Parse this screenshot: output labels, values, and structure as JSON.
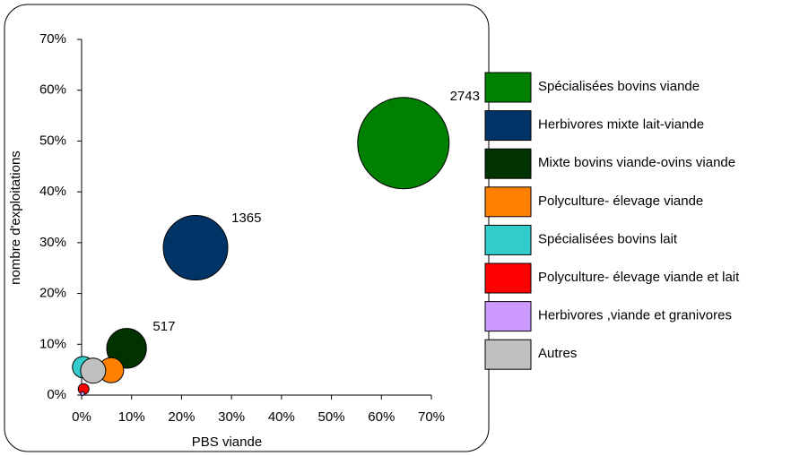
{
  "chart_data": {
    "type": "bubble",
    "xlabel": "PBS viande",
    "ylabel": "nombre d'exploitations",
    "xlim": [
      0,
      70
    ],
    "ylim": [
      0,
      70
    ],
    "xticks": [
      {
        "value": 0,
        "label": "0%"
      },
      {
        "value": 10,
        "label": "10%"
      },
      {
        "value": 20,
        "label": "20%"
      },
      {
        "value": 30,
        "label": "30%"
      },
      {
        "value": 40,
        "label": "40%"
      },
      {
        "value": 50,
        "label": "50%"
      },
      {
        "value": 60,
        "label": "60%"
      },
      {
        "value": 70,
        "label": "70%"
      }
    ],
    "yticks": [
      {
        "value": 0,
        "label": "0%"
      },
      {
        "value": 10,
        "label": "10%"
      },
      {
        "value": 20,
        "label": "20%"
      },
      {
        "value": 30,
        "label": "30%"
      },
      {
        "value": 40,
        "label": "40%"
      },
      {
        "value": 50,
        "label": "50%"
      },
      {
        "value": 60,
        "label": "60%"
      },
      {
        "value": 70,
        "label": "70%"
      }
    ],
    "legend": "right",
    "series": [
      {
        "name": "Spécialisées bovins viande",
        "color": "#008000",
        "x": 64.4,
        "y": 49.6,
        "size": 2743,
        "value_label": "2743"
      },
      {
        "name": "Herbivores mixte lait-viande",
        "color": "#003366",
        "x": 22.8,
        "y": 29,
        "size": 1365,
        "value_label": "1365"
      },
      {
        "name": "Mixte bovins viande-ovins viande",
        "color": "#003300",
        "x": 9,
        "y": 9.2,
        "size": 517,
        "value_label": "517"
      },
      {
        "name": "Polyculture- élevage viande",
        "color": "#ff8000",
        "x": 5.9,
        "y": 4.9,
        "size": 207
      },
      {
        "name": "Spécialisées bovins lait",
        "color": "#33cccc",
        "x": 0.3,
        "y": 5.5,
        "size": 150
      },
      {
        "name": "Polyculture- élevage viande et lait",
        "color": "#ff0000",
        "x": 0.4,
        "y": 1.2,
        "size": 38
      },
      {
        "name": "Herbivores ,viande et granivores",
        "color": "#cc99ff",
        "x": 0.2,
        "y": 0.3,
        "size": 5
      },
      {
        "name": "Autres",
        "color": "#c0c0c0",
        "x": 2.3,
        "y": 4.8,
        "size": 207
      }
    ]
  }
}
